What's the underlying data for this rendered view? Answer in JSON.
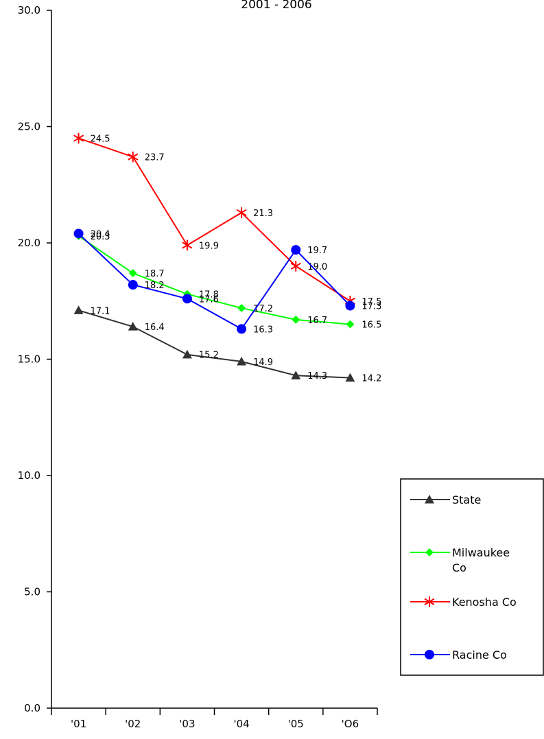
{
  "chart_data": {
    "type": "line",
    "title": "2001 - 2006",
    "xlabel": "",
    "ylabel": "",
    "categories": [
      "'01",
      "'02",
      "'03",
      "'04",
      "'05",
      "'O6"
    ],
    "ylim": [
      0,
      30
    ],
    "yticks": [
      "0.0",
      "5.0",
      "10.0",
      "15.0",
      "20.0",
      "25.0",
      "30.0"
    ],
    "grid": false,
    "legend_position": "right",
    "series": [
      {
        "name": "State",
        "color": "#333333",
        "marker": "triangle-icon",
        "values": [
          17.1,
          16.4,
          15.2,
          14.9,
          14.3,
          14.2
        ],
        "labels": [
          "17.1",
          "16.4",
          "15.2",
          "14.9",
          "14.3",
          "14.2"
        ]
      },
      {
        "name": "Milwaukee Co",
        "legend_lines": [
          "Milwaukee",
          "Co"
        ],
        "color": "#00ff00",
        "marker": "diamond-icon",
        "values": [
          20.3,
          18.7,
          17.8,
          17.2,
          16.7,
          16.5
        ],
        "labels": [
          "20.3",
          "18.7",
          "17.8",
          "17.2",
          "16.7",
          "16.5"
        ]
      },
      {
        "name": "Kenosha Co",
        "color": "#ff0000",
        "marker": "asterisk-icon",
        "values": [
          24.5,
          23.7,
          19.9,
          21.3,
          19.0,
          17.5
        ],
        "labels": [
          "24.5",
          "23.7",
          "19.9",
          "21.3",
          "19.0",
          "17.5"
        ]
      },
      {
        "name": "Racine Co",
        "color": "#0000ff",
        "marker": "circle-icon",
        "values": [
          20.4,
          18.2,
          17.6,
          16.3,
          19.7,
          17.3
        ],
        "labels": [
          "20.4",
          "18.2",
          "17.6",
          "16.3",
          "19.7",
          "17.3"
        ]
      }
    ]
  }
}
